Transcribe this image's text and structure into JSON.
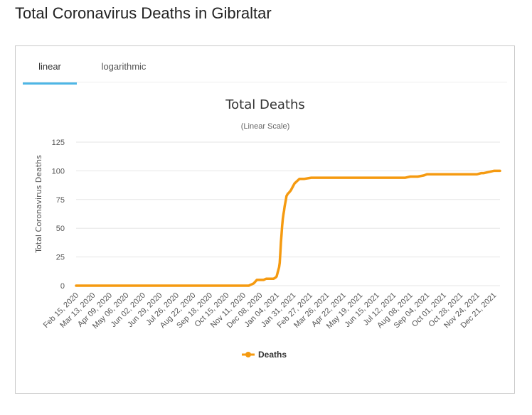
{
  "page": {
    "title": "Total Coronavirus Deaths in Gibraltar"
  },
  "tabs": [
    {
      "label": "linear",
      "active": true
    },
    {
      "label": "logarithmic",
      "active": false
    }
  ],
  "colors": {
    "series": "#f59a10",
    "tab_active": "#4db6e6",
    "grid": "#e6e6e6"
  },
  "chart_data": {
    "type": "line",
    "title": "Total Deaths",
    "subtitle": "(Linear Scale)",
    "ylabel": "Total Coronavirus Deaths",
    "xlabel": "",
    "ylim": [
      0,
      125
    ],
    "yticks": [
      0,
      25,
      50,
      75,
      100,
      125
    ],
    "grid": true,
    "legend_position": "bottom",
    "x_tick_labels": [
      "Feb 15, 2020",
      "Mar 13, 2020",
      "Apr 09, 2020",
      "May 06, 2020",
      "Jun 02, 2020",
      "Jun 29, 2020",
      "Jul 26, 2020",
      "Aug 22, 2020",
      "Sep 18, 2020",
      "Oct 15, 2020",
      "Nov 11, 2020",
      "Dec 08, 2020",
      "Jan 04, 2021",
      "Jan 31, 2021",
      "Feb 27, 2021",
      "Mar 26, 2021",
      "Apr 22, 2021",
      "May 19, 2021",
      "Jun 15, 2021",
      "Jul 12, 2021",
      "Aug 08, 2021",
      "Sep 04, 2021",
      "Oct 01, 2021",
      "Oct 28, 2021",
      "Nov 24, 2021",
      "Dec 21, 2021"
    ],
    "series": [
      {
        "name": "Deaths",
        "x": [
          "2020-02-15",
          "2020-11-20",
          "2020-11-24",
          "2020-11-28",
          "2020-12-03",
          "2020-12-06",
          "2020-12-10",
          "2020-12-14",
          "2020-12-18",
          "2020-12-22",
          "2020-12-26",
          "2020-12-30",
          "2021-01-02",
          "2021-01-04",
          "2021-01-05",
          "2021-01-06",
          "2021-01-07",
          "2021-01-08",
          "2021-01-09",
          "2021-01-10",
          "2021-01-11",
          "2021-01-12",
          "2021-01-13",
          "2021-01-14",
          "2021-01-15",
          "2021-01-16",
          "2021-01-17",
          "2021-01-18",
          "2021-01-19",
          "2021-01-20",
          "2021-01-22",
          "2021-01-24",
          "2021-01-27",
          "2021-01-30",
          "2021-02-02",
          "2021-02-06",
          "2021-02-10",
          "2021-02-18",
          "2021-03-01",
          "2021-03-26",
          "2021-04-22",
          "2021-05-19",
          "2021-06-15",
          "2021-07-12",
          "2021-07-31",
          "2021-08-08",
          "2021-08-20",
          "2021-08-30",
          "2021-09-04",
          "2021-10-01",
          "2021-10-10",
          "2021-10-28",
          "2021-11-24",
          "2021-12-01",
          "2021-12-05",
          "2021-12-21",
          "2021-12-31"
        ],
        "y": [
          0,
          0,
          1,
          2,
          5,
          5,
          5,
          5,
          6,
          6,
          6,
          6,
          7,
          8,
          10,
          12,
          14,
          16,
          20,
          28,
          38,
          45,
          52,
          58,
          62,
          65,
          69,
          72,
          75,
          78,
          80,
          81,
          83,
          86,
          89,
          91,
          93,
          93,
          94,
          94,
          94,
          94,
          94,
          94,
          94,
          95,
          95,
          96,
          97,
          97,
          97,
          97,
          97,
          98,
          98,
          100,
          100
        ]
      }
    ]
  }
}
